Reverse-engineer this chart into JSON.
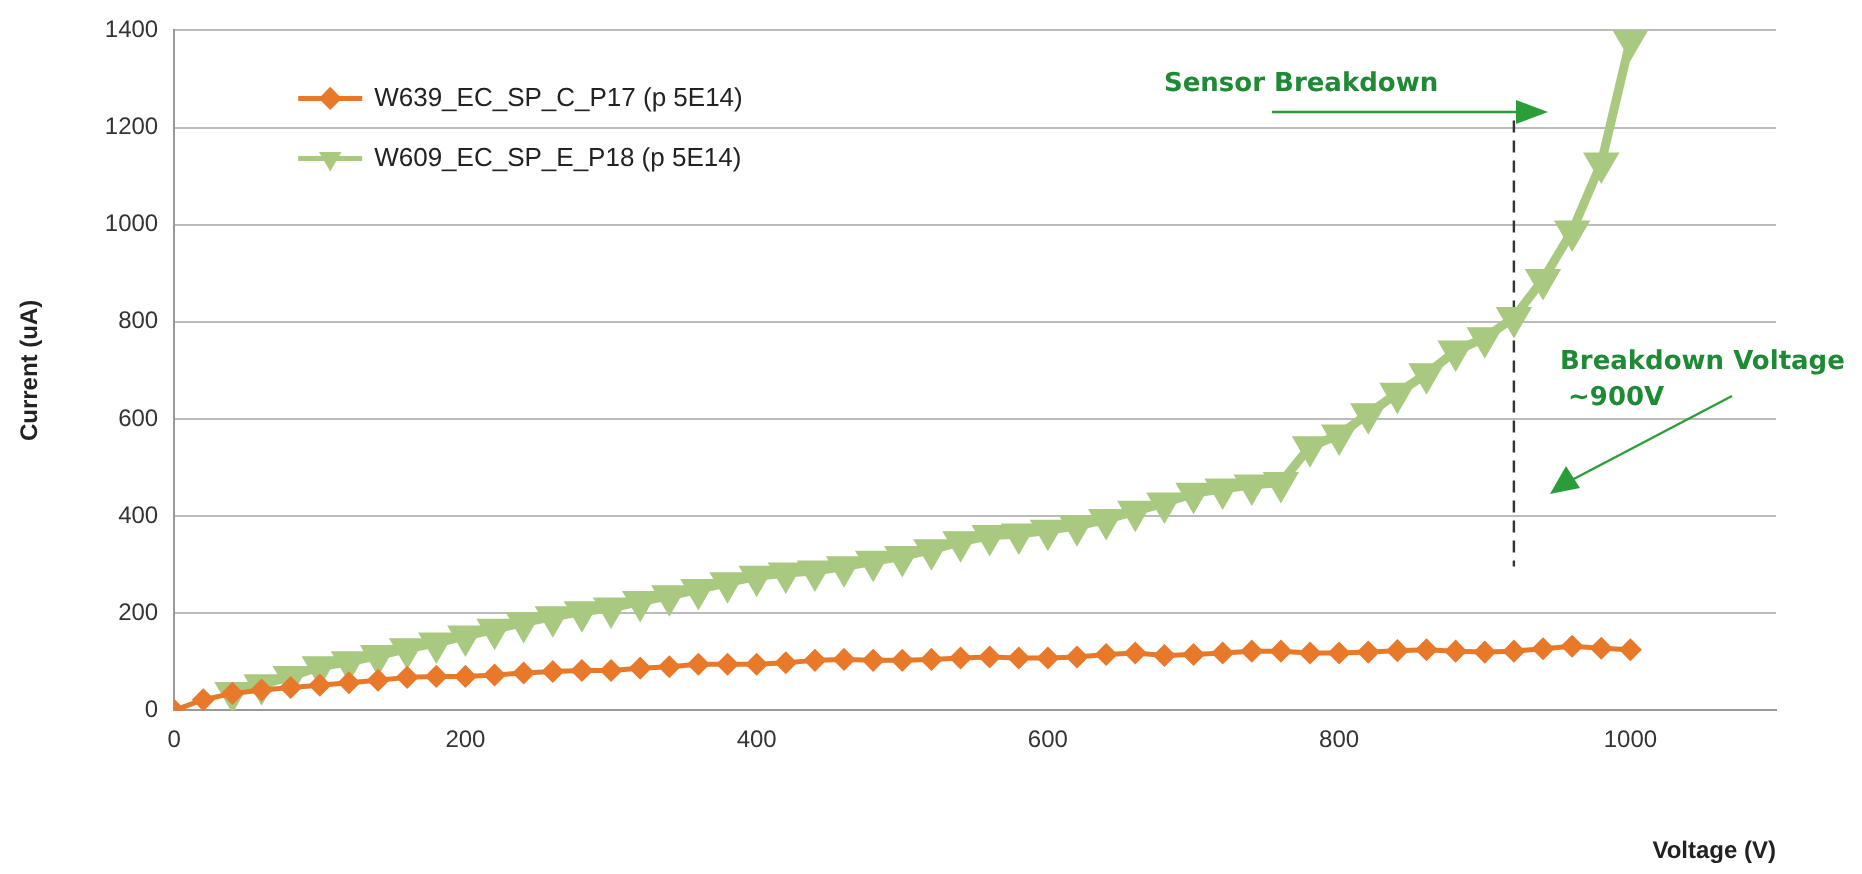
{
  "chart_data": {
    "type": "line",
    "xlabel": "Voltage (V)",
    "ylabel": "Current (uA)",
    "xlim": [
      0,
      1100
    ],
    "xticks": [
      0,
      200,
      400,
      600,
      800,
      1000
    ],
    "ylim": [
      0,
      1400
    ],
    "yticks": [
      0,
      200,
      400,
      600,
      800,
      1000,
      1200,
      1400
    ],
    "grid": "y",
    "legend": "top left",
    "line_style": "solid",
    "series": [
      {
        "name": "W639_EC_SP_C_P17 (p 5E14)",
        "color": "#e8792a",
        "marker": "diamond",
        "x": [
          0,
          20,
          40,
          60,
          80,
          100,
          120,
          140,
          160,
          180,
          200,
          220,
          240,
          260,
          280,
          300,
          320,
          340,
          360,
          380,
          400,
          420,
          440,
          460,
          480,
          500,
          520,
          540,
          560,
          580,
          600,
          620,
          640,
          660,
          680,
          700,
          720,
          740,
          760,
          780,
          800,
          820,
          840,
          860,
          880,
          900,
          920,
          940,
          960,
          980,
          1000
        ],
        "values": [
          0,
          22,
          35,
          42,
          47,
          52,
          57,
          62,
          68,
          70,
          70,
          73,
          77,
          80,
          82,
          82,
          87,
          90,
          95,
          95,
          95,
          98,
          103,
          105,
          103,
          103,
          105,
          108,
          110,
          108,
          108,
          110,
          115,
          118,
          113,
          115,
          118,
          122,
          122,
          118,
          118,
          120,
          123,
          125,
          122,
          120,
          122,
          127,
          132,
          128,
          125
        ]
      },
      {
        "name": "W609_EC_SP_E_P18 (p 5E14)",
        "color": "#a8c97f",
        "marker": "triangle",
        "x": [
          40,
          60,
          80,
          100,
          120,
          140,
          160,
          180,
          200,
          220,
          240,
          260,
          280,
          300,
          320,
          340,
          360,
          380,
          400,
          420,
          440,
          460,
          480,
          500,
          520,
          540,
          560,
          580,
          600,
          620,
          640,
          660,
          680,
          700,
          720,
          740,
          760,
          780,
          800,
          820,
          840,
          860,
          880,
          900,
          920,
          940,
          960,
          980,
          1000
        ],
        "values": [
          37,
          53,
          70,
          90,
          100,
          113,
          127,
          139,
          153,
          167,
          181,
          193,
          203,
          211,
          224,
          236,
          249,
          263,
          276,
          283,
          287,
          296,
          307,
          317,
          331,
          347,
          360,
          363,
          371,
          380,
          393,
          410,
          427,
          447,
          456,
          464,
          469,
          543,
          567,
          611,
          653,
          693,
          740,
          767,
          809,
          887,
          987,
          1127,
          1380
        ]
      }
    ],
    "ref_lines": [
      {
        "axis": "x",
        "value": 920,
        "color": "#333333",
        "line_style": "dashed"
      }
    ],
    "annotations": [
      "Sensor Breakdown",
      "Breakdown Voltage\n~900V"
    ]
  }
}
